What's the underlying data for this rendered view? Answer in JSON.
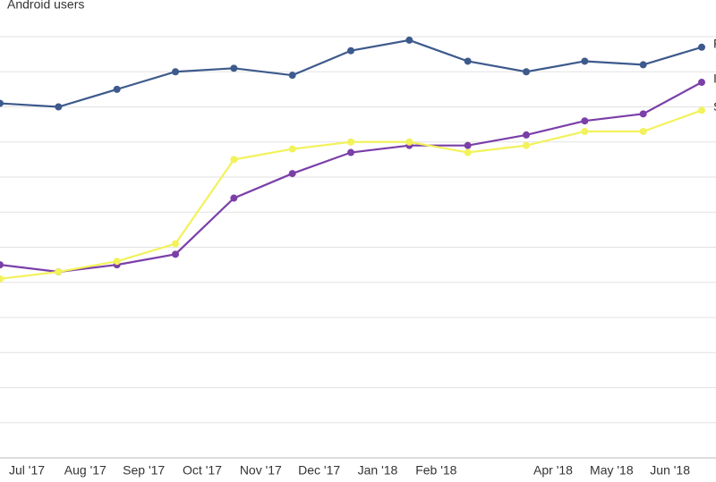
{
  "chart_data": {
    "type": "line",
    "title": "Android users",
    "categories": [
      "Jul '17",
      "Aug '17",
      "Sep '17",
      "Oct '17",
      "Nov '17",
      "Dec '17",
      "Jan '18",
      "Feb '18",
      null,
      "Apr '18",
      "May '18",
      "Jun '18",
      null
    ],
    "series": [
      {
        "name": "F",
        "color": "#3d5a8c",
        "values": [
          10.1,
          10.0,
          10.5,
          11.0,
          11.1,
          10.9,
          11.6,
          11.9,
          11.3,
          11.0,
          11.3,
          11.2,
          11.7
        ]
      },
      {
        "name": "I",
        "color": "#7b3fa8",
        "values": [
          5.5,
          5.3,
          5.5,
          5.8,
          7.4,
          8.1,
          8.7,
          8.9,
          8.9,
          9.2,
          9.6,
          9.8,
          10.7
        ]
      },
      {
        "name": "S",
        "color": "#f2f25a",
        "values": [
          5.1,
          5.3,
          5.6,
          6.1,
          8.5,
          8.8,
          9.0,
          9.0,
          8.7,
          8.9,
          9.3,
          9.3,
          9.9
        ]
      }
    ],
    "ylim": [
      0,
      12
    ],
    "yticks": [
      0,
      1,
      2,
      3,
      4,
      5,
      6,
      7,
      8,
      9,
      10,
      11,
      12
    ],
    "grid": true
  }
}
